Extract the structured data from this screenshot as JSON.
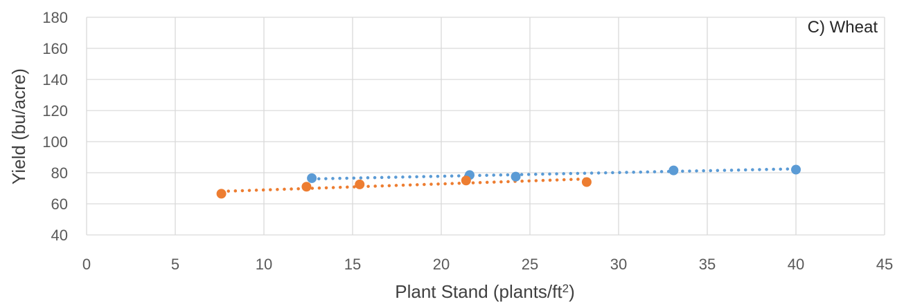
{
  "chart_data": {
    "type": "scatter",
    "title": "C) Wheat",
    "xlabel": "Plant Stand (plants/ft",
    "xlabel_sup": "2",
    "xlabel_end": ")",
    "ylabel": "Yield (bu/acre)",
    "xlim": [
      0,
      45
    ],
    "ylim": [
      40,
      180
    ],
    "xticks": [
      0,
      5,
      10,
      15,
      20,
      25,
      30,
      35,
      40,
      45
    ],
    "yticks": [
      40,
      60,
      80,
      100,
      120,
      140,
      160,
      180
    ],
    "grid": true,
    "series": [
      {
        "color": "#5B9BD5",
        "points": [
          [
            12.7,
            76.5
          ],
          [
            21.6,
            78.5
          ],
          [
            24.2,
            77.5
          ],
          [
            33.1,
            81.5
          ],
          [
            40.0,
            82.0
          ]
        ],
        "trendline": [
          [
            12.7,
            76.0
          ],
          [
            40.0,
            82.5
          ]
        ]
      },
      {
        "color": "#ED7D31",
        "points": [
          [
            7.6,
            66.5
          ],
          [
            12.4,
            71.0
          ],
          [
            15.4,
            72.5
          ],
          [
            21.4,
            75.0
          ],
          [
            28.2,
            74.0
          ]
        ],
        "trendline": [
          [
            7.6,
            68.0
          ],
          [
            28.2,
            76.0
          ]
        ]
      }
    ]
  }
}
